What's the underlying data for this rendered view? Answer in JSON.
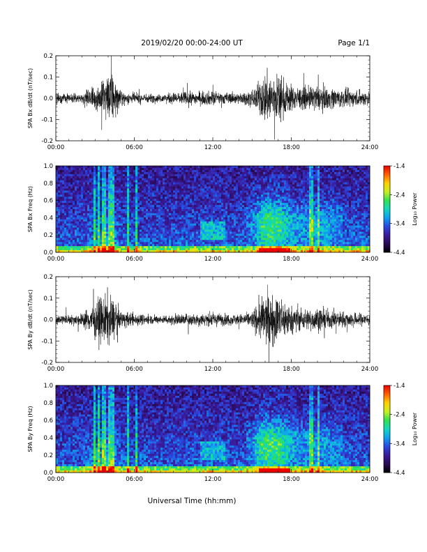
{
  "header": {
    "title": "2019/02/20  00:00-24:00 UT",
    "page": "Page 1/1"
  },
  "footer": {
    "xlabel": "Universal Time (hh:mm)"
  },
  "colors": {
    "trace": "#000000",
    "colormap": [
      "#000000",
      "#2a0a55",
      "#3a1a9a",
      "#2a48e0",
      "#0fa0f0",
      "#10d8c0",
      "#30e050",
      "#c8f020",
      "#ffd000",
      "#ff6000",
      "#ee0000"
    ]
  },
  "chart_data": [
    {
      "type": "line",
      "ylabel": "SPA Bx dB/dt (nT/sec)",
      "xlim": [
        0,
        24
      ],
      "ylim": [
        -0.2,
        0.2
      ],
      "x_ticks": [
        "00:00",
        "06:00",
        "12:00",
        "18:00",
        "24:00"
      ],
      "y_ticks": [
        "0.2",
        "0.1",
        "0.0",
        "-0.1",
        "-0.2"
      ],
      "activity_envelope": {
        "hours": [
          0,
          1,
          2,
          3,
          3.5,
          4,
          4.3,
          5,
          6,
          7,
          8,
          9,
          10,
          11,
          12,
          13,
          14,
          15,
          15.5,
          16,
          16.5,
          17,
          17.5,
          18,
          19,
          20,
          21,
          22,
          23,
          24
        ],
        "amplitude": [
          0.05,
          0.035,
          0.04,
          0.09,
          0.12,
          0.2,
          0.18,
          0.05,
          0.04,
          0.035,
          0.03,
          0.045,
          0.05,
          0.05,
          0.055,
          0.045,
          0.04,
          0.06,
          0.12,
          0.2,
          0.2,
          0.18,
          0.14,
          0.1,
          0.08,
          0.1,
          0.08,
          0.07,
          0.06,
          0.06
        ]
      }
    },
    {
      "type": "heatmap",
      "ylabel": "SPA Bx Freq (Hz)",
      "xlim": [
        0,
        24
      ],
      "ylim": [
        0,
        1
      ],
      "x_ticks": [
        "00:00",
        "06:00",
        "12:00",
        "18:00",
        "24:00"
      ],
      "y_ticks": [
        "1.0",
        "0.8",
        "0.6",
        "0.4",
        "0.2",
        "0.0"
      ],
      "colorbar": {
        "label": "Log₁₀ Power",
        "range": [
          -4.4,
          -1.4
        ],
        "ticks": [
          "-1.4",
          "-2.4",
          "-3.4",
          "-4.4"
        ]
      }
    },
    {
      "type": "line",
      "ylabel": "SPA By dB/dt (nT/sec)",
      "xlim": [
        0,
        24
      ],
      "ylim": [
        -0.2,
        0.2
      ],
      "x_ticks": [
        "00:00",
        "06:00",
        "12:00",
        "18:00",
        "24:00"
      ],
      "y_ticks": [
        "0.2",
        "0.1",
        "0.0",
        "-0.1",
        "-0.2"
      ],
      "activity_envelope": {
        "hours": [
          0,
          1,
          2,
          3,
          3.5,
          4,
          4.3,
          5,
          6,
          7,
          8,
          9,
          10,
          11,
          12,
          13,
          14,
          15,
          15.5,
          16,
          16.5,
          17,
          17.5,
          18,
          19,
          20,
          21,
          22,
          23,
          24
        ],
        "amplitude": [
          0.04,
          0.035,
          0.05,
          0.14,
          0.18,
          0.2,
          0.17,
          0.06,
          0.05,
          0.035,
          0.03,
          0.04,
          0.045,
          0.05,
          0.05,
          0.045,
          0.04,
          0.06,
          0.14,
          0.2,
          0.2,
          0.18,
          0.15,
          0.1,
          0.08,
          0.09,
          0.07,
          0.06,
          0.05,
          0.05
        ]
      }
    },
    {
      "type": "heatmap",
      "ylabel": "SPA By Freq (Hz)",
      "xlim": [
        0,
        24
      ],
      "ylim": [
        0,
        1
      ],
      "x_ticks": [
        "00:00",
        "06:00",
        "12:00",
        "18:00",
        "24:00"
      ],
      "y_ticks": [
        "1.0",
        "0.8",
        "0.6",
        "0.4",
        "0.2",
        "0.0"
      ],
      "colorbar": {
        "label": "Log₁₀ Power",
        "range": [
          -4.4,
          -1.4
        ],
        "ticks": [
          "-1.4",
          "-2.4",
          "-3.4",
          "-4.4"
        ]
      }
    }
  ]
}
